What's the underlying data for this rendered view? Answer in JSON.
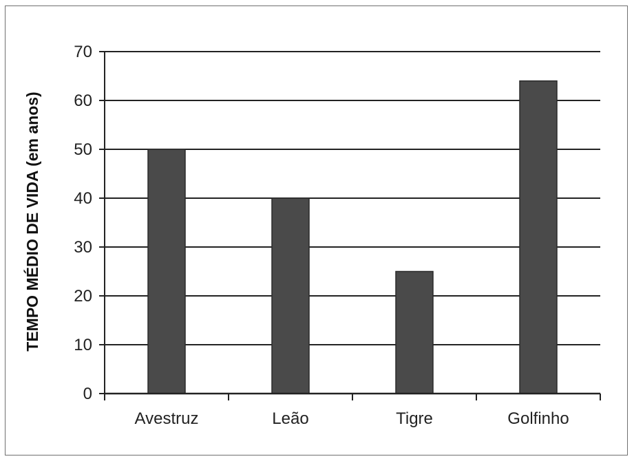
{
  "chart_data": {
    "type": "bar",
    "categories": [
      "Avestruz",
      "Leão",
      "Tigre",
      "Golfinho"
    ],
    "values": [
      50,
      40,
      25,
      64
    ],
    "title": "",
    "xlabel": "",
    "ylabel": "TEMPO MÉDIO DE VIDA (em anos)",
    "ylim": [
      0,
      70
    ],
    "yticks": [
      0,
      10,
      20,
      30,
      40,
      50,
      60,
      70
    ],
    "grid": true,
    "bar_color": "#4a4a4a",
    "grid_color": "#222222"
  }
}
